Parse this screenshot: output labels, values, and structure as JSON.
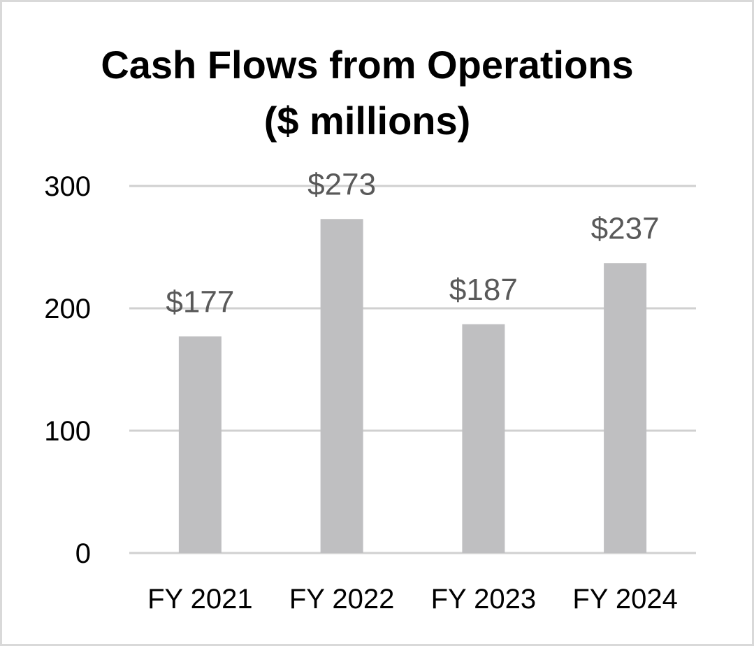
{
  "chart_data": {
    "type": "bar",
    "title": [
      "Cash Flows from Operations",
      "($ millions)"
    ],
    "categories": [
      "FY 2021",
      "FY 2022",
      "FY 2023",
      "FY 2024"
    ],
    "values": [
      177,
      273,
      187,
      237
    ],
    "data_labels": [
      "$177",
      "$273",
      "$187",
      "$237"
    ],
    "yticks": [
      0,
      100,
      200,
      300
    ],
    "ylim": [
      0,
      300
    ],
    "grid": true,
    "legend": "none",
    "colors": {
      "bar": "#bfbfc1",
      "grid": "#d0d0d0",
      "data_label": "#595959",
      "text": "#000000",
      "border": "#d9d9d9"
    }
  }
}
